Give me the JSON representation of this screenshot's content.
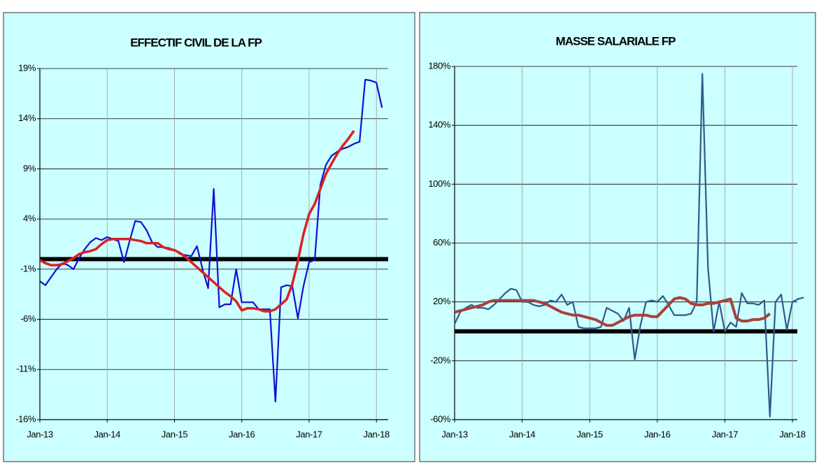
{
  "chart_data": [
    {
      "type": "line",
      "title": "EFFECTIF CIVIL DE LA FP",
      "categories": [
        "Jan-13",
        null,
        null,
        null,
        null,
        null,
        null,
        null,
        null,
        null,
        null,
        null,
        "Jan-14",
        null,
        null,
        null,
        null,
        null,
        null,
        null,
        null,
        null,
        null,
        null,
        "Jan-15",
        null,
        null,
        null,
        null,
        null,
        null,
        null,
        null,
        null,
        null,
        null,
        "Jan-16",
        null,
        null,
        null,
        null,
        null,
        null,
        null,
        null,
        null,
        null,
        null,
        "Jan-17",
        null,
        null,
        null,
        null,
        null,
        null,
        null,
        null,
        null,
        null,
        null,
        "Jan-18",
        null
      ],
      "series": [
        {
          "color": "#1010d0",
          "values": [
            -2.2,
            -2.6,
            -1.8,
            -1.0,
            -0.4,
            -0.6,
            -1.0,
            0.1,
            1.0,
            1.7,
            2.1,
            1.9,
            2.2,
            2.0,
            1.8,
            -0.3,
            1.8,
            3.8,
            3.7,
            2.9,
            1.7,
            1.2,
            1.2,
            1.1,
            0.9,
            0.5,
            0.4,
            0.3,
            1.3,
            -1.0,
            -2.9,
            7.0,
            -4.8,
            -4.5,
            -4.5,
            -1.0,
            -4.3,
            -4.3,
            -4.3,
            -5.0,
            -5.0,
            -5.0,
            -14.2,
            -2.8,
            -2.6,
            -2.7,
            -5.9,
            -2.7,
            -0.3,
            -0.1,
            7.4,
            9.4,
            10.3,
            10.7,
            11.0,
            11.2,
            11.5,
            11.7,
            17.9,
            17.8,
            17.6,
            15.1
          ]
        },
        {
          "color": "#dd2020",
          "values": [
            -0.1,
            -0.4,
            -0.6,
            -0.6,
            -0.5,
            -0.2,
            0.1,
            0.5,
            0.7,
            0.8,
            1.0,
            1.5,
            1.9,
            2.0,
            2.0,
            2.0,
            2.0,
            1.9,
            1.8,
            1.6,
            1.6,
            1.6,
            1.2,
            1.0,
            0.9,
            0.6,
            0.2,
            -0.3,
            -0.8,
            -1.3,
            -1.8,
            -2.3,
            -2.8,
            -3.3,
            -3.7,
            -4.2,
            -5.1,
            -4.9,
            -4.9,
            -5.0,
            -5.2,
            -5.2,
            -5.0,
            -4.5,
            -4.0,
            -2.5,
            -0.2,
            2.5,
            4.5,
            5.5,
            7.0,
            8.5,
            9.5,
            10.5,
            11.3,
            12.0,
            12.8,
            null,
            null,
            null,
            null,
            null
          ]
        }
      ],
      "ylim": [
        -16,
        19
      ],
      "yticks": [
        {
          "value": 19,
          "label": "19%"
        },
        {
          "value": 14,
          "label": "14%"
        },
        {
          "value": 9,
          "label": "9%"
        },
        {
          "value": 4,
          "label": "4%"
        },
        {
          "value": -1,
          "label": "-1%"
        },
        {
          "value": -6,
          "label": "-6%"
        },
        {
          "value": -11,
          "label": "-11%"
        },
        {
          "value": -16,
          "label": "-16%"
        }
      ],
      "grid": true
    },
    {
      "type": "line",
      "title": "MASSE SALARIALE FP",
      "categories": [
        "Jan-13",
        null,
        null,
        null,
        null,
        null,
        null,
        null,
        null,
        null,
        null,
        null,
        "Jan-14",
        null,
        null,
        null,
        null,
        null,
        null,
        null,
        null,
        null,
        null,
        null,
        "Jan-15",
        null,
        null,
        null,
        null,
        null,
        null,
        null,
        null,
        null,
        null,
        null,
        "Jan-16",
        null,
        null,
        null,
        null,
        null,
        null,
        null,
        null,
        null,
        null,
        null,
        "Jan-17",
        null,
        null,
        null,
        null,
        null,
        null,
        null,
        null,
        null,
        null,
        null,
        "Jan-18",
        null,
        null
      ],
      "series": [
        {
          "color": "#2f5a8a",
          "values": [
            5,
            13,
            16,
            18,
            16,
            16,
            15,
            18,
            22,
            26,
            29,
            28,
            20,
            20,
            18,
            17,
            18,
            21,
            20,
            25,
            18,
            20,
            3,
            2,
            2,
            2,
            3,
            16,
            14,
            12,
            7,
            16,
            -19,
            4,
            20,
            21,
            20,
            24,
            18,
            11,
            11,
            11,
            12,
            20,
            175,
            43,
            0,
            20,
            0,
            6,
            3,
            26,
            19,
            19,
            18,
            21,
            -58,
            20,
            25,
            1,
            20,
            22,
            23
          ]
        },
        {
          "color": "#a8403c",
          "values": [
            13,
            14,
            15,
            16,
            17,
            18,
            20,
            21,
            21,
            21,
            21,
            21,
            21,
            21,
            21,
            20,
            19,
            17,
            15,
            13,
            12,
            11,
            11,
            10,
            9,
            8,
            6,
            4,
            4,
            6,
            8,
            10,
            11,
            11,
            11,
            10,
            10,
            14,
            18,
            22,
            23,
            22,
            19,
            18,
            18,
            19,
            19,
            20,
            21,
            22,
            9,
            7,
            7,
            8,
            8,
            9,
            12,
            null,
            null,
            null,
            null,
            null,
            null
          ]
        }
      ],
      "ylim": [
        -60,
        180
      ],
      "yticks": [
        {
          "value": 180,
          "label": "180%"
        },
        {
          "value": 140,
          "label": "140%"
        },
        {
          "value": 100,
          "label": "100%"
        },
        {
          "value": 60,
          "label": "60%"
        },
        {
          "value": 20,
          "label": "20%"
        },
        {
          "value": -20,
          "label": "-20%"
        },
        {
          "value": -60,
          "label": "-60%"
        }
      ],
      "grid": true
    }
  ]
}
